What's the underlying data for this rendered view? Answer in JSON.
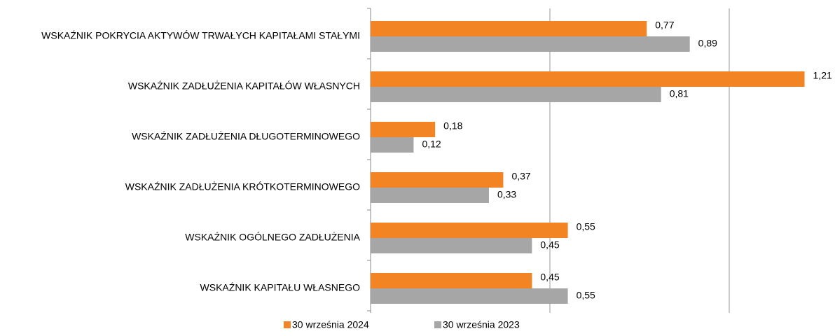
{
  "chart_data": {
    "type": "hbar",
    "categories": [
      "WSKAŹNIK POKRYCIA AKTYWÓW TRWAŁYCH KAPITAŁAMI STAŁYMI",
      "WSKAŹNIK ZADŁUŻENIA KAPITAŁÓW WŁASNYCH",
      "WSKAŹNIK ZADŁUŻENIA DŁUGOTERMINOWEGO",
      "WSKAŹNIK ZADŁUŻENIA KRÓTKOTERMINOWEGO",
      "WSKAŹNIK OGÓLNEGO ZADŁUŻENIA",
      "WSKAŹNIK KAPITAŁU WŁASNEGO"
    ],
    "series": [
      {
        "name": "30 września 2024",
        "color": "#f28423",
        "values": [
          0.77,
          1.21,
          0.18,
          0.37,
          0.55,
          0.45
        ],
        "value_labels": [
          "0,77",
          "1,21",
          "0,18",
          "0,37",
          "0,55",
          "0,45"
        ]
      },
      {
        "name": "30 września 2023",
        "color": "#a6a6a6",
        "values": [
          0.89,
          0.81,
          0.12,
          0.33,
          0.45,
          0.55
        ],
        "value_labels": [
          "0,89",
          "0,81",
          "0,12",
          "0,33",
          "0,45",
          "0,55"
        ]
      }
    ],
    "xlim": [
      0,
      1.25
    ],
    "xticks": [
      0,
      0.5,
      1
    ],
    "grid": true,
    "legend": "bottom"
  }
}
